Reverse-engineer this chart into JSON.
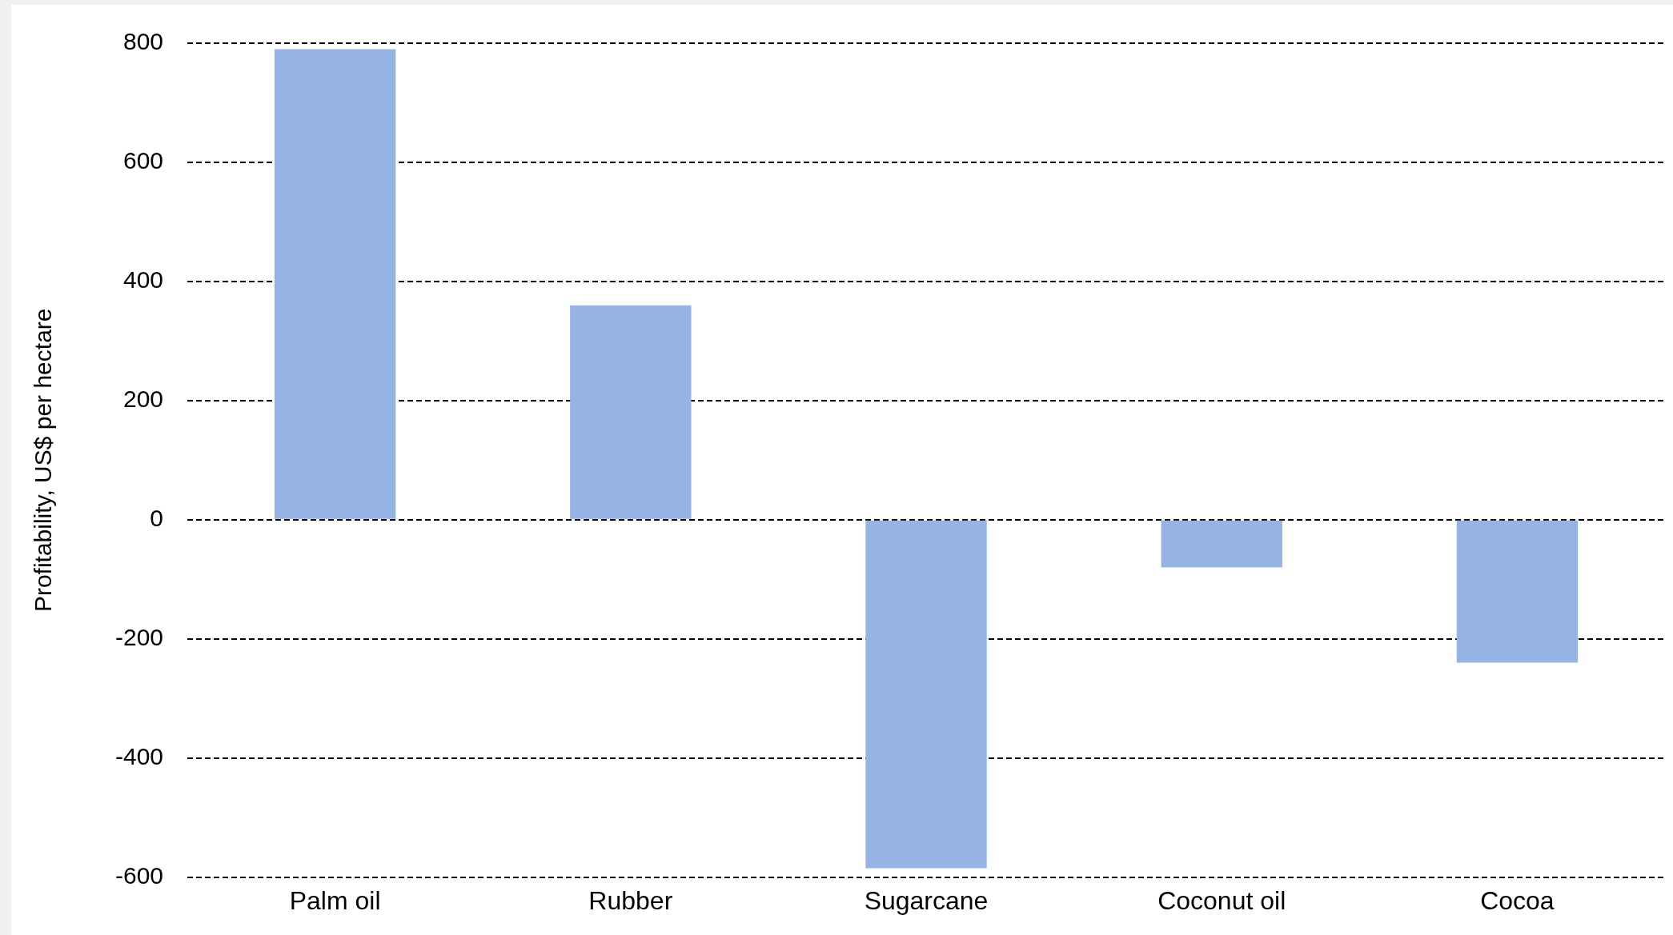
{
  "chart_data": {
    "type": "bar",
    "ylabel": "Profitability, US$ per hectare",
    "categories": [
      "Palm oil",
      "Rubber",
      "Sugarcane",
      "Coconut oil",
      "Cocoa"
    ],
    "values": [
      790,
      360,
      -585,
      -80,
      -240
    ],
    "color": "#95b3e5",
    "ylim": [
      -600,
      800
    ],
    "yticks": [
      -600,
      -400,
      -200,
      0,
      200,
      400,
      600,
      800
    ],
    "grid": "y"
  }
}
